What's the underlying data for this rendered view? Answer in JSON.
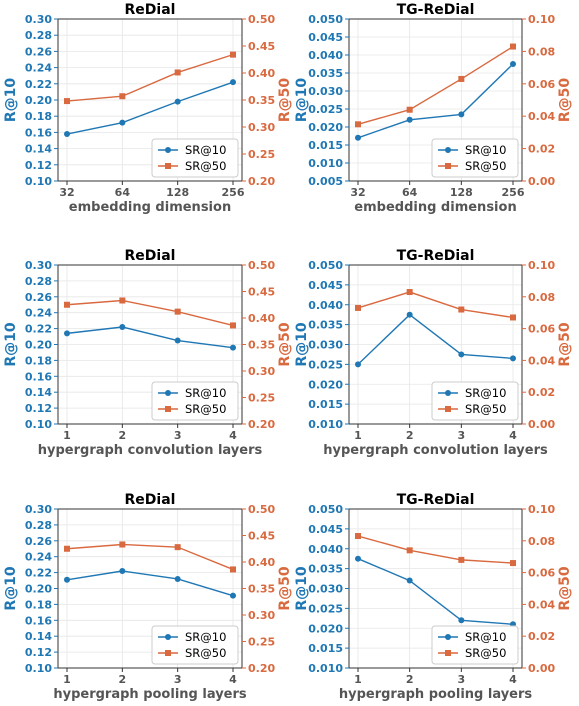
{
  "colors": {
    "sr10": "#1f77b4",
    "sr50": "#d9693f",
    "grid": "#e6e6e6",
    "xlabel": "#555555"
  },
  "chart_data": [
    {
      "type": "line",
      "title": "ReDial",
      "xlabel": "embedding dimension",
      "categories": [
        "32",
        "64",
        "128",
        "256"
      ],
      "ylabel_left": "R@10",
      "ylabel_right": "R@50",
      "ylim_left": [
        0.1,
        0.3
      ],
      "ylim_right": [
        0.2,
        0.5
      ],
      "yticks_left": [
        "0.10",
        "0.12",
        "0.14",
        "0.16",
        "0.18",
        "0.20",
        "0.22",
        "0.24",
        "0.26",
        "0.28",
        "0.30"
      ],
      "yticks_right": [
        "0.20",
        "0.25",
        "0.30",
        "0.35",
        "0.40",
        "0.45",
        "0.50"
      ],
      "series": [
        {
          "name": "SR@10",
          "axis": "left",
          "marker": "circle",
          "values": [
            0.158,
            0.172,
            0.198,
            0.222
          ]
        },
        {
          "name": "SR@50",
          "axis": "right",
          "marker": "square",
          "values": [
            0.348,
            0.357,
            0.401,
            0.434
          ]
        }
      ],
      "legend": "lower-right",
      "grid": true
    },
    {
      "type": "line",
      "title": "TG-ReDial",
      "xlabel": "embedding dimension",
      "categories": [
        "32",
        "64",
        "128",
        "256"
      ],
      "ylabel_left": "R@10",
      "ylabel_right": "R@50",
      "ylim_left": [
        0.005,
        0.05
      ],
      "ylim_right": [
        0.0,
        0.1
      ],
      "yticks_left": [
        "0.005",
        "0.010",
        "0.015",
        "0.020",
        "0.025",
        "0.030",
        "0.035",
        "0.040",
        "0.045",
        "0.050"
      ],
      "yticks_right": [
        "0.00",
        "0.02",
        "0.04",
        "0.06",
        "0.08",
        "0.10"
      ],
      "series": [
        {
          "name": "SR@10",
          "axis": "left",
          "marker": "circle",
          "values": [
            0.017,
            0.022,
            0.0235,
            0.0375
          ]
        },
        {
          "name": "SR@50",
          "axis": "right",
          "marker": "square",
          "values": [
            0.035,
            0.044,
            0.063,
            0.083
          ]
        }
      ],
      "legend": "lower-right",
      "grid": true
    },
    {
      "type": "line",
      "title": "ReDial",
      "xlabel": "hypergraph convolution layers",
      "categories": [
        "1",
        "2",
        "3",
        "4"
      ],
      "ylabel_left": "R@10",
      "ylabel_right": "R@50",
      "ylim_left": [
        0.1,
        0.3
      ],
      "ylim_right": [
        0.2,
        0.5
      ],
      "yticks_left": [
        "0.10",
        "0.12",
        "0.14",
        "0.16",
        "0.18",
        "0.20",
        "0.22",
        "0.24",
        "0.26",
        "0.28",
        "0.30"
      ],
      "yticks_right": [
        "0.20",
        "0.25",
        "0.30",
        "0.35",
        "0.40",
        "0.45",
        "0.50"
      ],
      "series": [
        {
          "name": "SR@10",
          "axis": "left",
          "marker": "circle",
          "values": [
            0.214,
            0.222,
            0.205,
            0.196
          ]
        },
        {
          "name": "SR@50",
          "axis": "right",
          "marker": "square",
          "values": [
            0.425,
            0.433,
            0.412,
            0.386
          ]
        }
      ],
      "legend": "lower-right",
      "grid": true
    },
    {
      "type": "line",
      "title": "TG-ReDial",
      "xlabel": "hypergraph convolution layers",
      "categories": [
        "1",
        "2",
        "3",
        "4"
      ],
      "ylabel_left": "R@10",
      "ylabel_right": "R@50",
      "ylim_left": [
        0.01,
        0.05
      ],
      "ylim_right": [
        0.0,
        0.1
      ],
      "yticks_left": [
        "0.010",
        "0.015",
        "0.020",
        "0.025",
        "0.030",
        "0.035",
        "0.040",
        "0.045",
        "0.050"
      ],
      "yticks_right": [
        "0.00",
        "0.02",
        "0.04",
        "0.06",
        "0.08",
        "0.10"
      ],
      "series": [
        {
          "name": "SR@10",
          "axis": "left",
          "marker": "circle",
          "values": [
            0.025,
            0.0375,
            0.0275,
            0.0265
          ]
        },
        {
          "name": "SR@50",
          "axis": "right",
          "marker": "square",
          "values": [
            0.073,
            0.083,
            0.072,
            0.067
          ]
        }
      ],
      "legend": "lower-right",
      "grid": true
    },
    {
      "type": "line",
      "title": "ReDial",
      "xlabel": "hypergraph pooling layers",
      "categories": [
        "1",
        "2",
        "3",
        "4"
      ],
      "ylabel_left": "R@10",
      "ylabel_right": "R@50",
      "ylim_left": [
        0.1,
        0.3
      ],
      "ylim_right": [
        0.2,
        0.5
      ],
      "yticks_left": [
        "0.10",
        "0.12",
        "0.14",
        "0.16",
        "0.18",
        "0.20",
        "0.22",
        "0.24",
        "0.26",
        "0.28",
        "0.30"
      ],
      "yticks_right": [
        "0.20",
        "0.25",
        "0.30",
        "0.35",
        "0.40",
        "0.45",
        "0.50"
      ],
      "series": [
        {
          "name": "SR@10",
          "axis": "left",
          "marker": "circle",
          "values": [
            0.211,
            0.222,
            0.212,
            0.191
          ]
        },
        {
          "name": "SR@50",
          "axis": "right",
          "marker": "square",
          "values": [
            0.425,
            0.433,
            0.428,
            0.386
          ]
        }
      ],
      "legend": "lower-right",
      "grid": true
    },
    {
      "type": "line",
      "title": "TG-ReDial",
      "xlabel": "hypergraph pooling layers",
      "categories": [
        "1",
        "2",
        "3",
        "4"
      ],
      "ylabel_left": "R@10",
      "ylabel_right": "R@50",
      "ylim_left": [
        0.01,
        0.05
      ],
      "ylim_right": [
        0.0,
        0.1
      ],
      "yticks_left": [
        "0.010",
        "0.015",
        "0.020",
        "0.025",
        "0.030",
        "0.035",
        "0.040",
        "0.045",
        "0.050"
      ],
      "yticks_right": [
        "0.00",
        "0.02",
        "0.04",
        "0.06",
        "0.08",
        "0.10"
      ],
      "series": [
        {
          "name": "SR@10",
          "axis": "left",
          "marker": "circle",
          "values": [
            0.0375,
            0.032,
            0.022,
            0.021
          ]
        },
        {
          "name": "SR@50",
          "axis": "right",
          "marker": "square",
          "values": [
            0.083,
            0.074,
            0.068,
            0.066
          ]
        }
      ],
      "legend": "lower-right",
      "grid": true
    }
  ]
}
